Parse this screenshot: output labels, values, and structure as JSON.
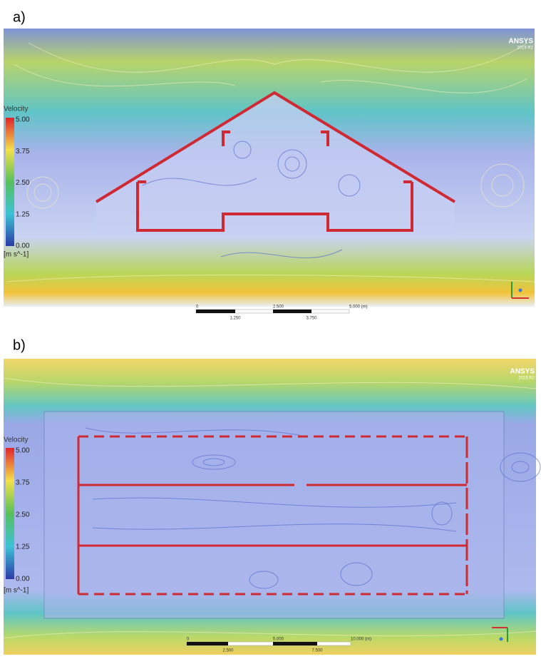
{
  "panels": [
    {
      "label": "a)",
      "logo": "ANSYS",
      "version": "2019 R2",
      "legend": {
        "title": "Velocity",
        "ticks": [
          "5.00",
          "3.75",
          "2.50",
          "1.25",
          "0.00"
        ],
        "unit": "[m s^-1]"
      },
      "scale": {
        "top": [
          "0",
          "2.500",
          "5.000 (m)"
        ],
        "bottom": [
          "1.250",
          "3.750"
        ]
      }
    },
    {
      "label": "b)",
      "logo": "ANSYS",
      "version": "2019 R2",
      "legend": {
        "title": "Velocity",
        "ticks": [
          "5.00",
          "3.75",
          "2.50",
          "1.25",
          "0.00"
        ],
        "unit": "[m s^-1]"
      },
      "scale": {
        "top": [
          "0",
          "5.000",
          "10.000 (m)"
        ],
        "bottom": [
          "2.500",
          "7.500"
        ]
      }
    }
  ]
}
